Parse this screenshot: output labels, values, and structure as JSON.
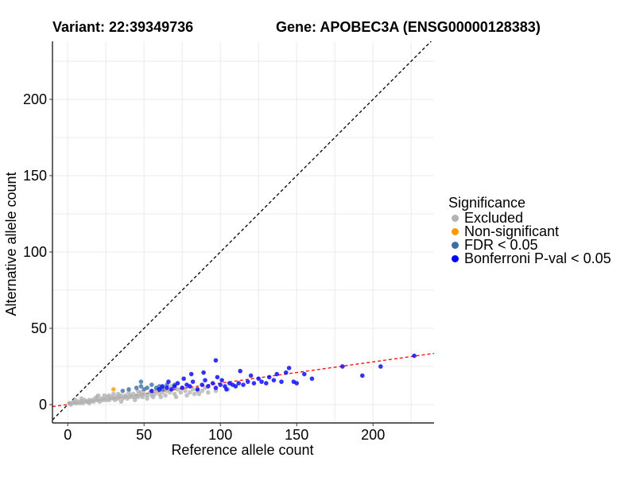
{
  "header": {
    "variant_label": "Variant: 22:39349736",
    "gene_label": "Gene: APOBEC3A (ENSG00000128383)"
  },
  "chart_data": {
    "type": "scatter",
    "xlabel": "Reference allele count",
    "ylabel": "Alternative allele count",
    "xlim": [
      -10,
      240
    ],
    "ylim": [
      -12,
      238
    ],
    "xticks": [
      0,
      50,
      100,
      150,
      200
    ],
    "yticks": [
      0,
      50,
      100,
      150,
      200
    ],
    "grid": true,
    "reference_line": {
      "name": "y = x",
      "slope": 1,
      "intercept": 0,
      "color": "#000000",
      "style": "dashed"
    },
    "fit_line": {
      "name": "regression",
      "slope": 0.1395,
      "intercept": 0.1,
      "color": "#ff0000",
      "style": "dashed"
    },
    "legend": {
      "title": "Significance",
      "position": "right",
      "entries": [
        {
          "label": "Excluded",
          "color": "#b3b3b3"
        },
        {
          "label": "Non-significant",
          "color": "#ff9900"
        },
        {
          "label": "FDR < 0.05",
          "color": "#3a6fa8"
        },
        {
          "label": "Bonferroni P-val < 0.05",
          "color": "#0000ff"
        }
      ]
    },
    "series": [
      {
        "name": "Excluded",
        "color": "#b3b3b3",
        "points": [
          [
            1,
            1
          ],
          [
            2,
            0
          ],
          [
            3,
            1
          ],
          [
            4,
            2
          ],
          [
            5,
            1
          ],
          [
            6,
            1
          ],
          [
            7,
            2
          ],
          [
            8,
            1
          ],
          [
            9,
            2
          ],
          [
            10,
            1
          ],
          [
            11,
            3
          ],
          [
            12,
            2
          ],
          [
            13,
            2
          ],
          [
            14,
            3
          ],
          [
            15,
            2
          ],
          [
            16,
            3
          ],
          [
            17,
            2
          ],
          [
            18,
            4
          ],
          [
            19,
            3
          ],
          [
            20,
            3
          ],
          [
            21,
            2
          ],
          [
            22,
            4
          ],
          [
            23,
            3
          ],
          [
            24,
            4
          ],
          [
            25,
            3
          ],
          [
            26,
            5
          ],
          [
            27,
            3
          ],
          [
            28,
            4
          ],
          [
            29,
            5
          ],
          [
            30,
            4
          ],
          [
            31,
            3
          ],
          [
            32,
            5
          ],
          [
            33,
            4
          ],
          [
            34,
            5
          ],
          [
            35,
            6
          ],
          [
            36,
            4
          ],
          [
            37,
            5
          ],
          [
            38,
            6
          ],
          [
            39,
            4
          ],
          [
            40,
            5
          ],
          [
            41,
            6
          ],
          [
            42,
            5
          ],
          [
            43,
            7
          ],
          [
            44,
            5
          ],
          [
            45,
            6
          ],
          [
            46,
            5
          ],
          [
            47,
            7
          ],
          [
            48,
            6
          ],
          [
            49,
            5
          ],
          [
            50,
            7
          ],
          [
            52,
            6
          ],
          [
            54,
            8
          ],
          [
            55,
            6
          ],
          [
            57,
            7
          ],
          [
            58,
            9
          ],
          [
            60,
            7
          ],
          [
            62,
            8
          ],
          [
            64,
            6
          ],
          [
            65,
            9
          ],
          [
            67,
            8
          ],
          [
            70,
            7
          ],
          [
            72,
            10
          ],
          [
            74,
            8
          ],
          [
            77,
            9
          ],
          [
            80,
            8
          ],
          [
            82,
            10
          ],
          [
            85,
            9
          ],
          [
            88,
            9
          ],
          [
            90,
            11
          ],
          [
            5,
            3
          ],
          [
            9,
            4
          ],
          [
            14,
            1
          ],
          [
            19,
            5
          ],
          [
            24,
            6
          ],
          [
            30,
            7
          ],
          [
            35,
            2
          ],
          [
            40,
            8
          ],
          [
            46,
            9
          ],
          [
            52,
            4
          ],
          [
            58,
            10
          ],
          [
            63,
            11
          ],
          [
            68,
            12
          ],
          [
            75,
            11
          ],
          [
            83,
            7
          ],
          [
            92,
            8
          ],
          [
            97,
            9
          ],
          [
            105,
            10
          ],
          [
            20,
            6
          ],
          [
            27,
            6
          ],
          [
            33,
            7
          ],
          [
            44,
            3
          ],
          [
            48,
            8
          ],
          [
            56,
            5
          ],
          [
            61,
            5
          ],
          [
            71,
            5
          ],
          [
            78,
            6
          ],
          [
            86,
            7
          ]
        ]
      },
      {
        "name": "Non-significant",
        "color": "#ff9900",
        "points": [
          [
            30,
            10
          ]
        ]
      },
      {
        "name": "FDR < 0.05",
        "color": "#3a6fa8",
        "points": [
          [
            40,
            10
          ],
          [
            45,
            11
          ],
          [
            48,
            12
          ],
          [
            50,
            10
          ],
          [
            52,
            11
          ],
          [
            55,
            13
          ],
          [
            58,
            11
          ],
          [
            60,
            12
          ],
          [
            62,
            10
          ],
          [
            65,
            13
          ],
          [
            48,
            15
          ],
          [
            70,
            13
          ],
          [
            36,
            9
          ]
        ]
      },
      {
        "name": "Bonferroni P-val < 0.05",
        "color": "#0000ff",
        "points": [
          [
            55,
            9
          ],
          [
            60,
            10
          ],
          [
            62,
            12
          ],
          [
            65,
            11
          ],
          [
            68,
            10
          ],
          [
            70,
            12
          ],
          [
            72,
            14
          ],
          [
            75,
            11
          ],
          [
            78,
            13
          ],
          [
            80,
            12
          ],
          [
            82,
            15
          ],
          [
            85,
            10
          ],
          [
            88,
            13
          ],
          [
            90,
            16
          ],
          [
            92,
            12
          ],
          [
            95,
            14
          ],
          [
            97,
            11
          ],
          [
            98,
            18
          ],
          [
            100,
            13
          ],
          [
            101,
            16
          ],
          [
            103,
            12
          ],
          [
            104,
            10
          ],
          [
            106,
            14
          ],
          [
            108,
            13
          ],
          [
            110,
            12
          ],
          [
            112,
            14
          ],
          [
            115,
            13
          ],
          [
            118,
            15
          ],
          [
            120,
            19
          ],
          [
            122,
            14
          ],
          [
            125,
            17
          ],
          [
            127,
            15
          ],
          [
            130,
            14
          ],
          [
            132,
            18
          ],
          [
            135,
            16
          ],
          [
            140,
            15
          ],
          [
            143,
            21
          ],
          [
            145,
            24
          ],
          [
            148,
            15
          ],
          [
            150,
            14
          ],
          [
            155,
            20
          ],
          [
            160,
            17
          ],
          [
            180,
            25
          ],
          [
            193,
            19
          ],
          [
            205,
            25
          ],
          [
            227,
            32
          ],
          [
            97,
            29
          ],
          [
            81,
            20
          ],
          [
            89,
            21
          ],
          [
            113,
            22
          ],
          [
            137,
            20
          ],
          [
            76,
            17
          ],
          [
            66,
            15
          ]
        ]
      }
    ]
  }
}
